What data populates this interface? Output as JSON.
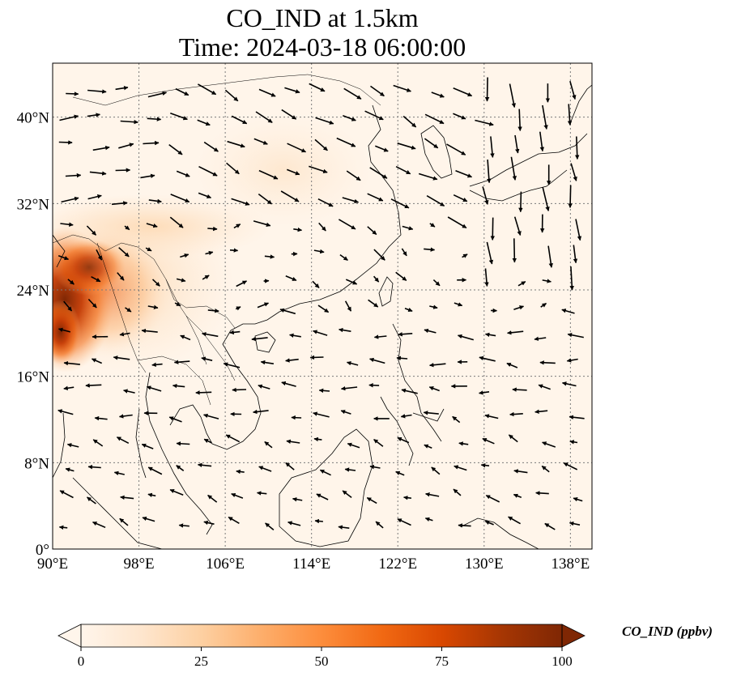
{
  "title_line1": "CO_IND at 1.5km",
  "title_line2": "Time: 2024-03-18 06:00:00",
  "map": {
    "lon_range": [
      90,
      140
    ],
    "lat_range": [
      0,
      45
    ],
    "lon_ticks": [
      90,
      98,
      106,
      114,
      122,
      130,
      138
    ],
    "lat_ticks": [
      0,
      8,
      16,
      24,
      32,
      40
    ],
    "lon_tick_labels": [
      "90°E",
      "98°E",
      "106°E",
      "114°E",
      "122°E",
      "130°E",
      "138°E"
    ],
    "lat_tick_labels": [
      "0°",
      "8°N",
      "16°N",
      "24°N",
      "32°N",
      "40°N"
    ],
    "gridlines": true
  },
  "colorbar": {
    "label": "CO_IND (ppbv)",
    "range": [
      0,
      100
    ],
    "ticks": [
      "0",
      "25",
      "50",
      "75",
      "100"
    ],
    "colormap": [
      "#fff5eb",
      "#fee6ce",
      "#fdd0a2",
      "#fdae6b",
      "#fd8d3c",
      "#f16913",
      "#d94801",
      "#a63603",
      "#7f2704"
    ],
    "extend": "both"
  },
  "colors": {
    "coast": "#000000",
    "grid": "#7a7a7a",
    "background_field": "#fff5ea"
  }
}
